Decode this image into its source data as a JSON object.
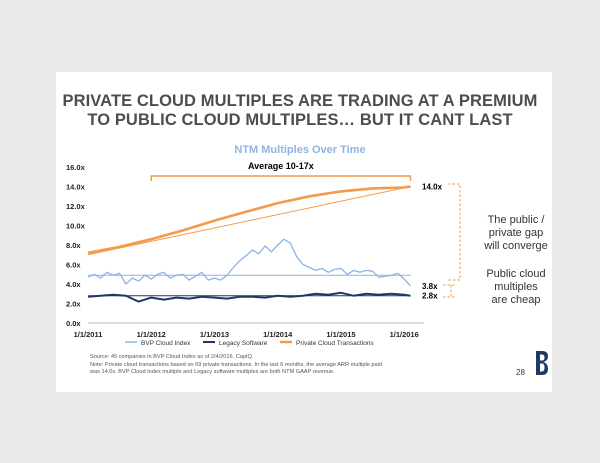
{
  "headline": {
    "line1": "PRIVATE CLOUD MULTIPLES ARE TRADING AT A PREMIUM",
    "line2": "TO PUBLIC CLOUD MULTIPLES… BUT IT CANT LAST"
  },
  "chart_data": {
    "type": "line",
    "title": "NTM Multiples Over Time",
    "x_ticks": [
      "1/1/2011",
      "1/1/2012",
      "1/1/2013",
      "1/1/2014",
      "1/1/2015",
      "1/1/2016"
    ],
    "y_ticks": [
      "0.0x",
      "2.0x",
      "4.0x",
      "6.0x",
      "8.0x",
      "10.0x",
      "12.0x",
      "14.0x",
      "16.0x"
    ],
    "xlim": [
      2011.0,
      2016.25
    ],
    "ylim": [
      0,
      16
    ],
    "series": [
      {
        "name": "BVP Cloud Index",
        "color": "#8eb4e3",
        "x": [
          2011.0,
          2011.1,
          2011.2,
          2011.3,
          2011.4,
          2011.5,
          2011.6,
          2011.7,
          2011.8,
          2011.9,
          2012.0,
          2012.1,
          2012.2,
          2012.3,
          2012.4,
          2012.5,
          2012.6,
          2012.7,
          2012.8,
          2012.9,
          2013.0,
          2013.1,
          2013.2,
          2013.3,
          2013.4,
          2013.5,
          2013.6,
          2013.7,
          2013.8,
          2013.9,
          2014.0,
          2014.1,
          2014.2,
          2014.3,
          2014.4,
          2014.5,
          2014.6,
          2014.7,
          2014.8,
          2014.9,
          2015.0,
          2015.1,
          2015.2,
          2015.3,
          2015.4,
          2015.5,
          2015.6,
          2015.7,
          2015.8,
          2015.9,
          2016.0,
          2016.1
        ],
        "values": [
          4.7,
          5.0,
          4.6,
          5.2,
          4.9,
          5.1,
          4.0,
          4.6,
          4.3,
          4.9,
          4.5,
          5.0,
          5.2,
          4.6,
          4.9,
          5.0,
          4.4,
          4.8,
          5.2,
          4.4,
          4.6,
          4.4,
          4.9,
          5.7,
          6.4,
          6.9,
          7.5,
          7.1,
          7.9,
          7.3,
          8.0,
          8.6,
          8.2,
          6.8,
          6.0,
          5.7,
          5.4,
          5.6,
          5.2,
          5.5,
          5.6,
          5.0,
          5.4,
          5.2,
          5.4,
          5.3,
          4.7,
          4.8,
          4.9,
          5.1,
          4.5,
          3.8
        ]
      },
      {
        "name": "Legacy Software",
        "color": "#1f3864",
        "x": [
          2011.0,
          2011.2,
          2011.4,
          2011.6,
          2011.8,
          2012.0,
          2012.2,
          2012.4,
          2012.6,
          2012.8,
          2013.0,
          2013.2,
          2013.4,
          2013.6,
          2013.8,
          2014.0,
          2014.2,
          2014.4,
          2014.6,
          2014.8,
          2015.0,
          2015.2,
          2015.4,
          2015.6,
          2015.8,
          2016.0,
          2016.1
        ],
        "values": [
          2.7,
          2.8,
          2.9,
          2.8,
          2.2,
          2.6,
          2.4,
          2.6,
          2.5,
          2.7,
          2.6,
          2.5,
          2.7,
          2.7,
          2.6,
          2.8,
          2.7,
          2.8,
          3.0,
          2.9,
          3.1,
          2.8,
          3.0,
          2.9,
          3.0,
          2.9,
          2.8
        ]
      },
      {
        "name": "Private Cloud Transactions",
        "color": "#f29b4b",
        "x": [
          2011.0,
          2011.5,
          2012.0,
          2012.5,
          2013.0,
          2013.5,
          2014.0,
          2014.5,
          2015.0,
          2015.5,
          2016.0,
          2016.1
        ],
        "values": [
          7.2,
          7.8,
          8.6,
          9.5,
          10.5,
          11.4,
          12.3,
          13.0,
          13.5,
          13.8,
          13.9,
          14.0
        ]
      }
    ],
    "reference_lines": [
      {
        "label": "BVP Cloud Index average",
        "value": 4.9,
        "color": "#8eb4e3"
      },
      {
        "label": "Legacy Software average",
        "value": 2.8,
        "color": "#1f3864"
      }
    ],
    "trend_line": {
      "x": [
        2011.0,
        2016.1
      ],
      "values": [
        7.0,
        14.0
      ],
      "color": "#f29b4b"
    },
    "bracket": {
      "label": "Average 10-17x",
      "x_from": 2012.0,
      "x_to": 2016.1
    },
    "end_labels": [
      {
        "text": "14.0x",
        "value": 14.0
      },
      {
        "text": "3.8x",
        "value": 3.8
      },
      {
        "text": "2.8x",
        "value": 2.8
      }
    ]
  },
  "annotations": {
    "gap_text": [
      "The public /",
      "private gap",
      "will converge"
    ],
    "cheap_text": [
      "Public cloud",
      "multiples",
      "are cheap"
    ]
  },
  "footnotes": {
    "source": "Source: 45 companies in BVP Cloud Index as of 2/4/2016.  CapIQ.",
    "note_line1": "Note: Private cloud transactions based on 69 private transactions.  In the last 6 months, the average ARR multiple paid",
    "note_line2": "was 14.0x.  BVP Cloud Index multiple and Legacy software multiples are both NTM GAAP revenue."
  },
  "page_number": "28",
  "colors": {
    "title": "#8eb4e3",
    "accent": "#f29b4b",
    "navy": "#1f3864",
    "headline": "#4d4d4d"
  }
}
